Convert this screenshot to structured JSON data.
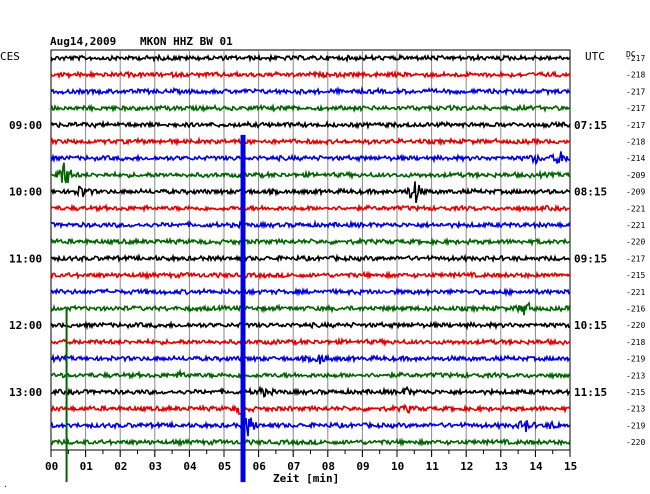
{
  "header": {
    "date": "Aug14,2009",
    "station": "MKON HHZ BW 01",
    "left_zone": "CES",
    "right_zone": "UTC",
    "dc_label": "DC"
  },
  "footer": {
    "xlabel": "Zeit [min]"
  },
  "chart_data": {
    "type": "line",
    "title": "Aug14,2009   MKON HHZ BW 01",
    "xlabel": "Zeit [min]",
    "ylabel": "",
    "xlim": [
      0,
      15
    ],
    "x_ticks": [
      "00",
      "01",
      "02",
      "03",
      "04",
      "05",
      "06",
      "07",
      "08",
      "09",
      "10",
      "11",
      "12",
      "13",
      "14",
      "15"
    ],
    "trace_colors": [
      "#000000",
      "#e00000",
      "#0000e0",
      "#006400"
    ],
    "left_time_labels": [
      {
        "trace_index": 4,
        "label": "09:00"
      },
      {
        "trace_index": 8,
        "label": "10:00"
      },
      {
        "trace_index": 12,
        "label": "11:00"
      },
      {
        "trace_index": 16,
        "label": "12:00"
      },
      {
        "trace_index": 20,
        "label": "13:00"
      }
    ],
    "right_time_labels": [
      {
        "trace_index": 4,
        "label": "07:15"
      },
      {
        "trace_index": 8,
        "label": "08:15"
      },
      {
        "trace_index": 12,
        "label": "09:15"
      },
      {
        "trace_index": 16,
        "label": "10:15"
      },
      {
        "trace_index": 20,
        "label": "11:15"
      }
    ],
    "dc_offsets": [
      "-217",
      "-218",
      "-217",
      "-217",
      "-217",
      "-218",
      "-214",
      "-209",
      "-209",
      "-221",
      "-221",
      "-220",
      "-217",
      "-215",
      "-221",
      "-216",
      "-220",
      "-218",
      "-219",
      "-213",
      "-215",
      "-213",
      "-219",
      "-220"
    ],
    "traces": 24,
    "events": [
      {
        "trace": 6,
        "minute": 14.7,
        "amplitude": 0.5
      },
      {
        "trace": 6,
        "minute": 14.0,
        "amplitude": 0.3
      },
      {
        "trace": 7,
        "minute": 0.4,
        "amplitude": 1.2
      },
      {
        "trace": 8,
        "minute": 10.5,
        "amplitude": 1.1
      },
      {
        "trace": 8,
        "minute": 0.9,
        "amplitude": 0.5
      },
      {
        "trace": 15,
        "minute": 13.7,
        "amplitude": 0.6
      },
      {
        "trace": 18,
        "minute": 7.8,
        "amplitude": 0.4
      },
      {
        "trace": 19,
        "minute": 3.8,
        "amplitude": 0.2
      },
      {
        "trace": 20,
        "minute": 6.1,
        "amplitude": 0.3
      },
      {
        "trace": 20,
        "minute": 10.3,
        "amplitude": 0.25
      },
      {
        "trace": 21,
        "minute": 5.5,
        "amplitude": 0.4
      },
      {
        "trace": 21,
        "minute": 10.3,
        "amplitude": 0.2
      },
      {
        "trace": 22,
        "minute": 5.7,
        "amplitude": 0.9
      },
      {
        "trace": 22,
        "minute": 13.7,
        "amplitude": 0.5
      },
      {
        "trace": 22,
        "minute": 14.5,
        "amplitude": 0.2
      }
    ],
    "spikes": [
      {
        "trace": 22,
        "minute": 5.55,
        "color": "#0000e0",
        "top_trace": 4.6,
        "bottom_trace": 25.4,
        "width": 5
      },
      {
        "trace": 22,
        "minute": 0.45,
        "color": "#006400",
        "top_trace": 15.0,
        "bottom_trace": 25.4,
        "width": 2
      }
    ]
  }
}
